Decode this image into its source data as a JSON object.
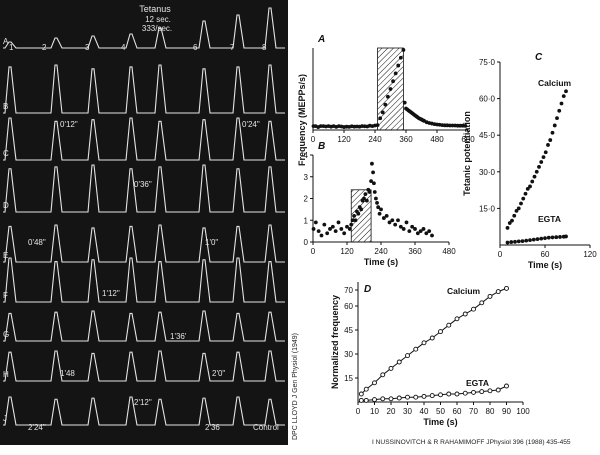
{
  "credits": {
    "left_vertical": "DPC LLOYD J Gen Physiol (1949)",
    "bottom": "I NUSSINOVITCH & R RAHAMIMOFF JPhysiol 396 (1988) 435-455"
  },
  "photo": {
    "title_lines": [
      "Tetanus",
      "12 sec.",
      "333/sec."
    ],
    "row_letters": [
      "A",
      "B",
      "C",
      "D",
      "E",
      "F",
      "G",
      "H",
      "J"
    ],
    "top_numbers": [
      "1",
      "2",
      "3",
      "4",
      "6",
      "7",
      "8"
    ],
    "time_labels": [
      "0'12\"",
      "0'24\"",
      "0'36\"",
      "0'48\"",
      "1'0\"",
      "1'12\"",
      "1'36'",
      "1'48",
      "2'0\"",
      "2'12\"",
      "2'24\"",
      "2'36",
      "Control"
    ]
  },
  "colors": {
    "photo_bg": "#141414",
    "trace": "#e4e4e4",
    "ink": "#111111"
  },
  "shared_ylabel": "Frequency (MEPPs/s)",
  "chart_data": [
    {
      "id": "A",
      "panel_label": "A",
      "type": "scatter",
      "xlabel": "",
      "ylabel": "",
      "xlim": [
        0,
        600
      ],
      "ylim": [
        0,
        42
      ],
      "xticks": [
        "0",
        "120",
        "240",
        "360",
        "480",
        "600"
      ],
      "xtick_values": [
        0,
        120,
        240,
        360,
        480,
        600
      ],
      "yticks": [],
      "ytick_values": [],
      "shaded_region": [
        250,
        350
      ],
      "series": [
        {
          "x": [
            2,
            10,
            20,
            30,
            40,
            50,
            60,
            70,
            80,
            90,
            100,
            110,
            120,
            130,
            140,
            150,
            160,
            170,
            180,
            190,
            200,
            210,
            220,
            230,
            240,
            250,
            260,
            270,
            280,
            290,
            300,
            310,
            320,
            330,
            340,
            350,
            355,
            360,
            365,
            370,
            375,
            380,
            385,
            390,
            395,
            400,
            405,
            410,
            415,
            420,
            425,
            430,
            440,
            450,
            460,
            470,
            480,
            490,
            500,
            510,
            520,
            530,
            540,
            550,
            560,
            570,
            580,
            590
          ],
          "y": [
            2,
            2,
            1.5,
            2,
            2,
            1.8,
            2,
            1.7,
            2,
            1.6,
            2,
            1.8,
            1.5,
            1.7,
            1.6,
            1.9,
            1.7,
            1.8,
            1.7,
            2,
            1.9,
            1.8,
            2.2,
            2,
            2.3,
            2.5,
            6,
            9,
            13,
            17,
            21,
            25,
            29,
            33,
            37,
            41,
            14,
            11,
            10.5,
            10,
            9.5,
            9,
            8.5,
            8,
            7.5,
            7,
            6.5,
            6,
            5.7,
            5.4,
            5,
            4.7,
            4,
            3.6,
            3.3,
            3,
            2.8,
            2.7,
            2.5,
            2.4,
            2.4,
            2.3,
            2.3,
            2.3,
            2.2,
            2.2,
            2.2,
            2.1
          ]
        }
      ]
    },
    {
      "id": "B",
      "panel_label": "B",
      "type": "scatter",
      "xlabel": "Time (s)",
      "ylabel": "",
      "xlim": [
        0,
        480
      ],
      "ylim": [
        0,
        4
      ],
      "xticks": [
        "0",
        "120",
        "240",
        "360",
        "480"
      ],
      "xtick_values": [
        0,
        120,
        240,
        360,
        480
      ],
      "yticks": [
        "0",
        "1",
        "2",
        "3",
        "4"
      ],
      "ytick_values": [
        0,
        1,
        2,
        3,
        4
      ],
      "shaded_region": [
        135,
        205
      ],
      "series": [
        {
          "x": [
            2,
            10,
            20,
            30,
            40,
            50,
            60,
            70,
            80,
            90,
            100,
            110,
            120,
            130,
            135,
            140,
            145,
            150,
            155,
            160,
            165,
            170,
            175,
            180,
            185,
            190,
            195,
            200,
            205,
            208,
            212,
            215,
            218,
            222,
            226,
            230,
            235,
            240,
            250,
            260,
            270,
            280,
            290,
            300,
            310,
            320,
            330,
            340,
            350,
            360,
            370,
            380,
            390,
            400,
            410,
            420
          ],
          "y": [
            0.6,
            0.9,
            0.5,
            0.3,
            0.8,
            0.4,
            0.6,
            0.7,
            0.5,
            0.9,
            0.6,
            0.4,
            0.7,
            0.6,
            0.8,
            1.0,
            1.2,
            1.0,
            1.4,
            1.3,
            1.6,
            1.5,
            1.9,
            2.0,
            2.2,
            1.9,
            2.4,
            2.3,
            2.8,
            3.6,
            3.2,
            2.7,
            2.3,
            2.0,
            1.8,
            1.6,
            1.3,
            1.5,
            1.1,
            1.2,
            0.9,
            1.0,
            0.8,
            1.0,
            0.7,
            0.6,
            0.9,
            0.5,
            0.7,
            0.6,
            0.4,
            0.5,
            0.6,
            0.4,
            0.5,
            0.3
          ]
        }
      ]
    },
    {
      "id": "C",
      "panel_label": "C",
      "type": "scatter",
      "xlabel": "Time (s)",
      "ylabel": "Tetanic potentiation",
      "xlim": [
        0,
        120
      ],
      "ylim": [
        0,
        75
      ],
      "xticks": [
        "0",
        "60",
        "120"
      ],
      "xtick_values": [
        0,
        60,
        120
      ],
      "yticks": [
        "15·0",
        "30·0",
        "45·0",
        "60·0",
        "75·0"
      ],
      "ytick_values": [
        15,
        30,
        45,
        60,
        75
      ],
      "series": [
        {
          "name": "Calcium",
          "x": [
            10,
            13,
            16,
            19,
            22,
            25,
            28,
            31,
            34,
            37,
            40,
            43,
            46,
            49,
            52,
            55,
            58,
            61,
            64,
            67,
            70,
            73,
            76,
            79,
            82,
            85,
            88
          ],
          "y": [
            7,
            9,
            10,
            12,
            14,
            15,
            17,
            19,
            21,
            23,
            24,
            26,
            28,
            30,
            32,
            34,
            36,
            38,
            41,
            43,
            46,
            49,
            52,
            55,
            58,
            61,
            63
          ]
        },
        {
          "name": "EGTA",
          "x": [
            10,
            15,
            20,
            25,
            30,
            35,
            40,
            45,
            50,
            55,
            60,
            65,
            70,
            75,
            80,
            85,
            88
          ],
          "y": [
            1,
            1.2,
            1.3,
            1.5,
            1.6,
            1.8,
            2,
            2.2,
            2.4,
            2.6,
            2.8,
            3,
            3.1,
            3.2,
            3.3,
            3.4,
            3.5
          ]
        }
      ]
    },
    {
      "id": "D",
      "panel_label": "D",
      "type": "line",
      "xlabel": "Time (s)",
      "ylabel": "Normalized frequency",
      "xlim": [
        0,
        100
      ],
      "ylim": [
        0,
        75
      ],
      "xticks": [
        "0",
        "10",
        "20",
        "30",
        "40",
        "50",
        "60",
        "70",
        "80",
        "90",
        "100"
      ],
      "xtick_values": [
        0,
        10,
        20,
        30,
        40,
        50,
        60,
        70,
        80,
        90,
        100
      ],
      "yticks": [
        "15",
        "30",
        "45",
        "60",
        "70"
      ],
      "ytick_values": [
        15,
        30,
        45,
        60,
        70
      ],
      "series": [
        {
          "name": "Calcium",
          "x": [
            2,
            5,
            10,
            15,
            20,
            25,
            30,
            35,
            40,
            45,
            50,
            55,
            60,
            65,
            70,
            75,
            80,
            85,
            90
          ],
          "y": [
            5,
            8,
            12,
            17,
            21,
            25,
            29,
            33,
            37,
            40,
            44,
            48,
            52,
            55,
            58,
            62,
            66,
            69,
            71
          ]
        },
        {
          "name": "EGTA",
          "x": [
            2,
            5,
            10,
            15,
            20,
            25,
            30,
            35,
            40,
            45,
            50,
            55,
            60,
            65,
            70,
            75,
            80,
            85,
            90
          ],
          "y": [
            1,
            1,
            1.5,
            2,
            2,
            2.5,
            3,
            3,
            3.5,
            4,
            4.5,
            5,
            5,
            5.5,
            6,
            6.5,
            7,
            7.5,
            10
          ]
        }
      ]
    }
  ]
}
